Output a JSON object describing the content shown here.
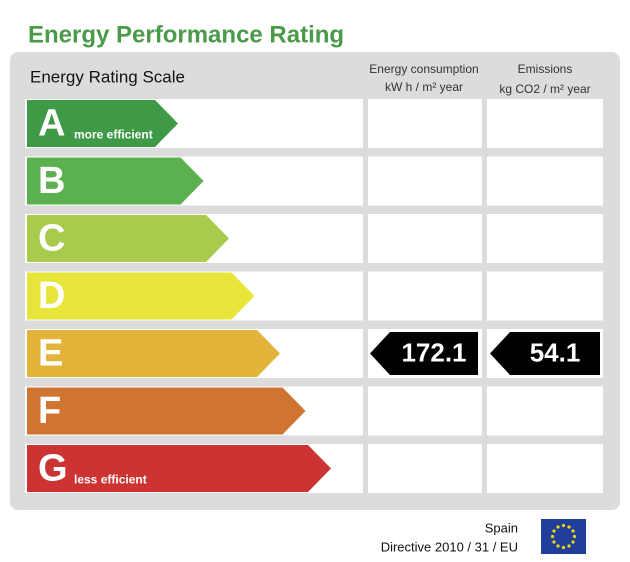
{
  "title": "Energy Performance Rating",
  "scale_title": "Energy Rating Scale",
  "columns": [
    {
      "line1": "Energy consumption",
      "line2": "kW h / m² year"
    },
    {
      "line1": "Emissions",
      "line2": "kg CO2 / m² year"
    }
  ],
  "ratings": [
    {
      "letter": "A",
      "note": "more efficient",
      "color": "#3f9a48"
    },
    {
      "letter": "B",
      "color": "#5bb04f"
    },
    {
      "letter": "C",
      "color": "#a8cb4c"
    },
    {
      "letter": "D",
      "color": "#e8e53a"
    },
    {
      "letter": "E",
      "color": "#e2b43a",
      "consumption": 172.1,
      "emissions": 54.1
    },
    {
      "letter": "F",
      "color": "#cf7431"
    },
    {
      "letter": "G",
      "note": "less efficient",
      "color": "#cc3333"
    }
  ],
  "footer": {
    "country": "Spain",
    "directive": "Directive 2010 / 31 / EU"
  }
}
